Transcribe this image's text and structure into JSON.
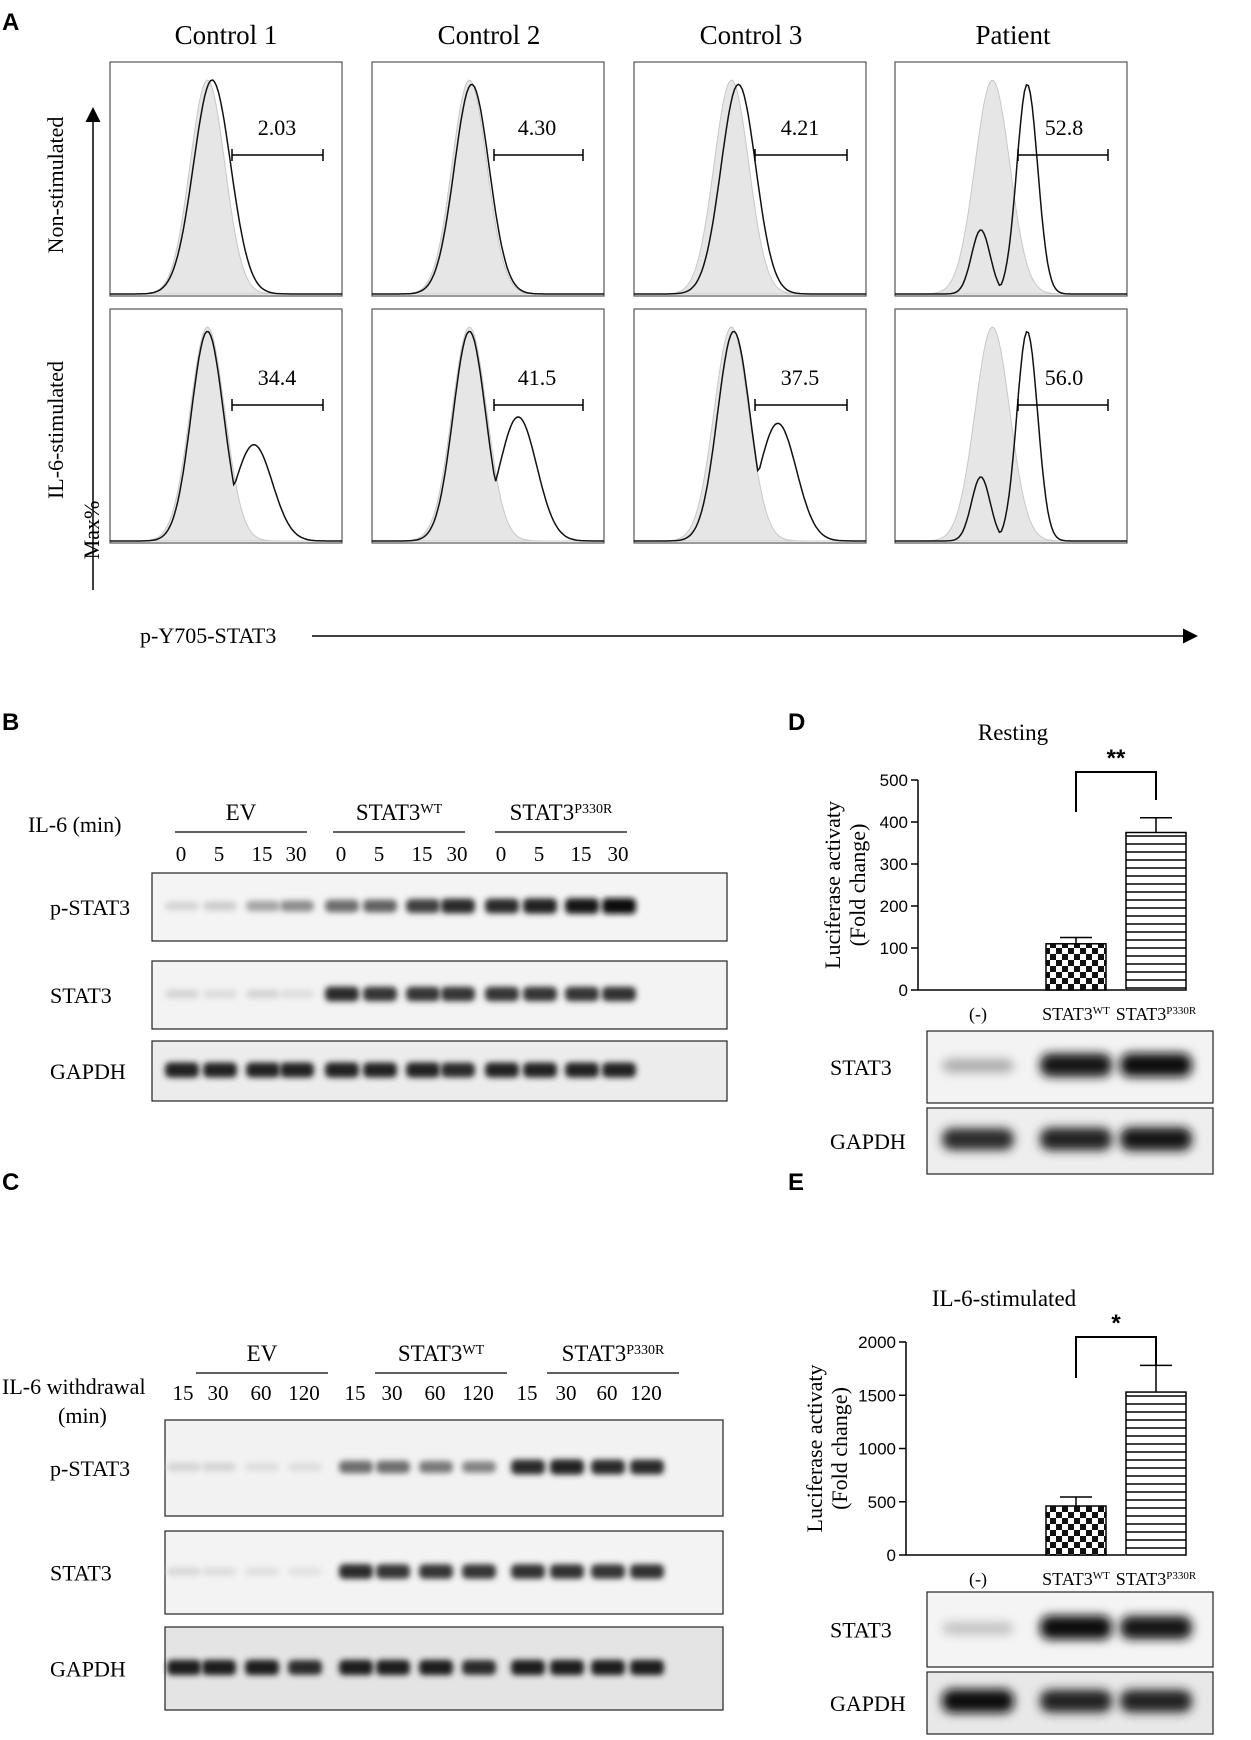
{
  "panel_a": {
    "letter": "A",
    "columns": [
      "Control 1",
      "Control 2",
      "Control 3",
      "Patient"
    ],
    "row_labels": [
      "Non-stimulated",
      "IL-6-stimulated"
    ],
    "y_label": "Max%",
    "x_label": "p-Y705-STAT3",
    "gate_values": [
      [
        "2.03",
        "4.30",
        "4.21",
        "52.8"
      ],
      [
        "34.4",
        "41.5",
        "37.5",
        "56.0"
      ]
    ]
  },
  "panel_b": {
    "letter": "B",
    "condition_label": "IL-6 (min)",
    "groups": [
      {
        "name": "EV",
        "sup": ""
      },
      {
        "name": "STAT3",
        "sup": "WT"
      },
      {
        "name": "STAT3",
        "sup": "P330R"
      }
    ],
    "lanes": [
      "0",
      "5",
      "15",
      "30",
      "0",
      "5",
      "15",
      "30",
      "0",
      "5",
      "15",
      "30"
    ],
    "blots": [
      "p-STAT3",
      "STAT3",
      "GAPDH"
    ]
  },
  "panel_c": {
    "letter": "C",
    "condition_label": "IL-6 withdrawal",
    "condition_unit": "(min)",
    "groups": [
      {
        "name": "EV",
        "sup": ""
      },
      {
        "name": "STAT3",
        "sup": "WT"
      },
      {
        "name": "STAT3",
        "sup": "P330R"
      }
    ],
    "lanes": [
      "15",
      "30",
      "60",
      "120",
      "15",
      "30",
      "60",
      "120",
      "15",
      "30",
      "60",
      "120"
    ],
    "blots": [
      "p-STAT3",
      "STAT3",
      "GAPDH"
    ]
  },
  "chart_data": [
    {
      "panel": "D",
      "type": "bar",
      "title": "Resting",
      "ylabel": "Luciferase activaty (Fold change)",
      "ylabel_lines": [
        "Luciferase activaty",
        "(Fold change)"
      ],
      "categories": [
        "(-)",
        "STAT3WT",
        "STAT3P330R"
      ],
      "category_parts": [
        {
          "base": "(-)",
          "sup": ""
        },
        {
          "base": "STAT3",
          "sup": "WT"
        },
        {
          "base": "STAT3",
          "sup": "P330R"
        }
      ],
      "values": [
        0,
        110,
        375
      ],
      "errors": [
        0,
        15,
        35
      ],
      "ylim": [
        0,
        500
      ],
      "yticks": [
        "0",
        "100",
        "200",
        "300",
        "400",
        "500"
      ],
      "significance": "**",
      "blots": [
        "STAT3",
        "GAPDH"
      ]
    },
    {
      "panel": "E",
      "type": "bar",
      "title": "IL-6-stimulated",
      "ylabel": "Luciferase activaty (Fold change)",
      "ylabel_lines": [
        "Luciferase activaty",
        "(Fold change)"
      ],
      "categories": [
        "(-)",
        "STAT3WT",
        "STAT3P330R"
      ],
      "category_parts": [
        {
          "base": "(-)",
          "sup": ""
        },
        {
          "base": "STAT3",
          "sup": "WT"
        },
        {
          "base": "STAT3",
          "sup": "P330R"
        }
      ],
      "values": [
        0,
        460,
        1530
      ],
      "errors": [
        0,
        85,
        250
      ],
      "ylim": [
        0,
        2000
      ],
      "yticks": [
        "0",
        "500",
        "1000",
        "1500",
        "2000"
      ],
      "significance": "*",
      "blots": [
        "STAT3",
        "GAPDH"
      ]
    }
  ]
}
